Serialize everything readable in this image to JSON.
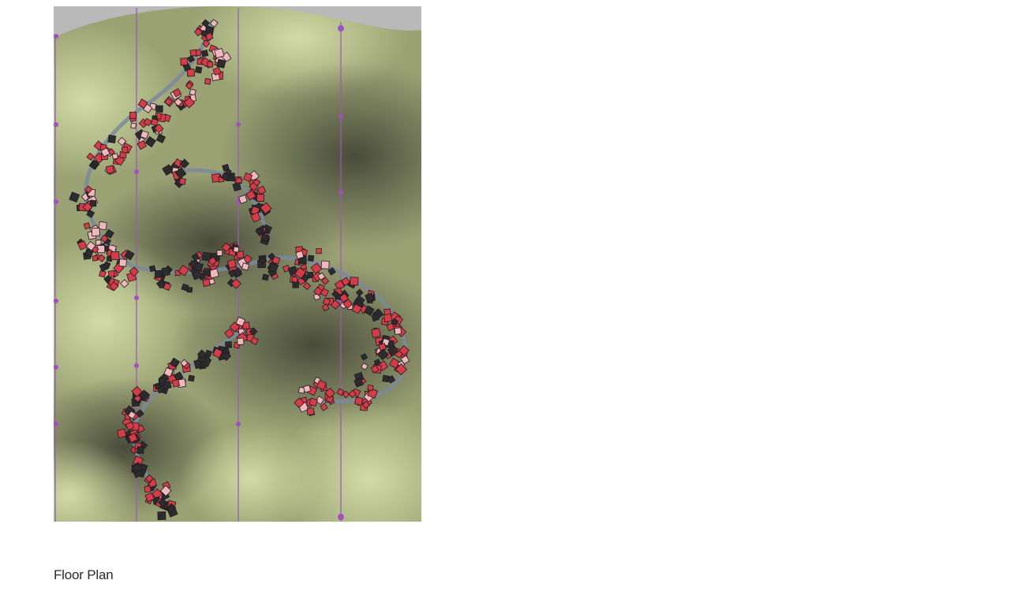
{
  "caption": "Floor Plan",
  "colors": {
    "background": "#ffffff",
    "sky_gray": "#b9b9b9",
    "terrain_light": "#cdd6a2",
    "terrain_mid": "#9fa777",
    "terrain_dark": "#4f5241",
    "grid_line": "#9b5bb4",
    "grid_marker": "#a050c0",
    "path": "#7d8a9a",
    "pod_red": "#d63c48",
    "pod_light": "#f0b8bc",
    "pod_dark": "#2e2b2e"
  },
  "icons": [
    "floor-plan-drawing"
  ]
}
